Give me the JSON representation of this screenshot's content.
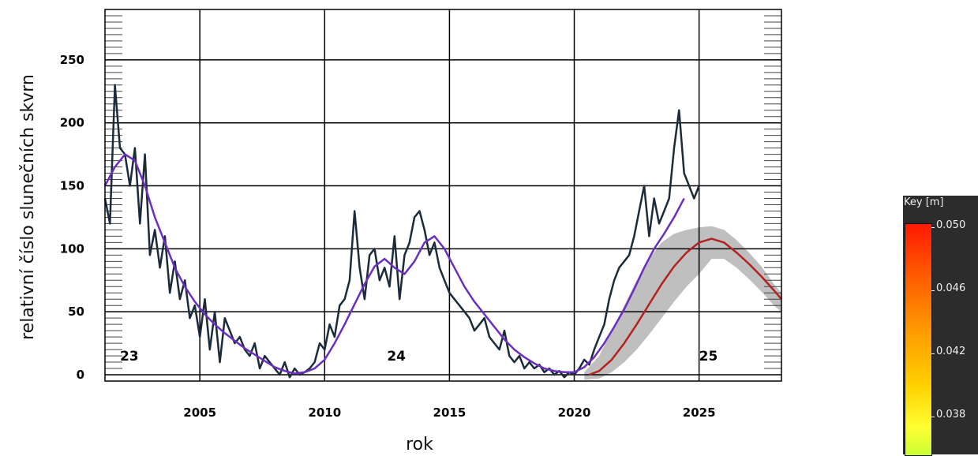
{
  "chart_data": {
    "type": "line",
    "xlabel": "rok",
    "ylabel": "relativní číslo slunečních skvrn",
    "xlim": [
      2001.2,
      2028.3
    ],
    "ylim": [
      -5,
      290
    ],
    "x_ticks": [
      2005,
      2010,
      2015,
      2020,
      2025
    ],
    "y_ticks": [
      0,
      50,
      100,
      150,
      200,
      250
    ],
    "grid": true,
    "cycle_labels": [
      {
        "text": "23",
        "x": 2001.8,
        "y": 15
      },
      {
        "text": "24",
        "x": 2012.5,
        "y": 15
      },
      {
        "text": "25",
        "x": 2025.0,
        "y": 15
      }
    ],
    "series": [
      {
        "color": "#1c2b3a",
        "x": [
          2001.2,
          2001.4,
          2001.6,
          2001.8,
          2002.0,
          2002.2,
          2002.4,
          2002.6,
          2002.8,
          2003.0,
          2003.2,
          2003.4,
          2003.6,
          2003.8,
          2004.0,
          2004.2,
          2004.4,
          2004.6,
          2004.8,
          2005.0,
          2005.2,
          2005.4,
          2005.6,
          2005.8,
          2006.0,
          2006.2,
          2006.4,
          2006.6,
          2006.8,
          2007.0,
          2007.2,
          2007.4,
          2007.6,
          2007.8,
          2008.0,
          2008.2,
          2008.4,
          2008.6,
          2008.8,
          2009.0,
          2009.2,
          2009.4,
          2009.6,
          2009.8,
          2010.0,
          2010.2,
          2010.4,
          2010.6,
          2010.8,
          2011.0,
          2011.2,
          2011.4,
          2011.6,
          2011.8,
          2012.0,
          2012.2,
          2012.4,
          2012.6,
          2012.8,
          2013.0,
          2013.2,
          2013.4,
          2013.6,
          2013.8,
          2014.0,
          2014.2,
          2014.4,
          2014.6,
          2014.8,
          2015.0,
          2015.2,
          2015.4,
          2015.6,
          2015.8,
          2016.0,
          2016.2,
          2016.4,
          2016.6,
          2016.8,
          2017.0,
          2017.2,
          2017.4,
          2017.6,
          2017.8,
          2018.0,
          2018.2,
          2018.4,
          2018.6,
          2018.8,
          2019.0,
          2019.2,
          2019.4,
          2019.6,
          2019.8,
          2020.0,
          2020.2,
          2020.4,
          2020.6,
          2020.8,
          2021.0,
          2021.2,
          2021.4,
          2021.6,
          2021.8,
          2022.0,
          2022.2,
          2022.4,
          2022.6,
          2022.8,
          2023.0,
          2023.2,
          2023.4,
          2023.6,
          2023.8,
          2024.0,
          2024.2,
          2024.4,
          2024.6,
          2024.8,
          2025.0
        ],
        "y": [
          140,
          120,
          230,
          180,
          175,
          150,
          180,
          120,
          175,
          95,
          115,
          85,
          110,
          65,
          90,
          60,
          75,
          45,
          55,
          30,
          60,
          20,
          50,
          10,
          45,
          35,
          25,
          30,
          20,
          15,
          25,
          5,
          15,
          10,
          5,
          0,
          10,
          -2,
          5,
          0,
          2,
          5,
          10,
          25,
          20,
          40,
          30,
          55,
          60,
          75,
          130,
          85,
          60,
          95,
          100,
          75,
          85,
          70,
          110,
          60,
          95,
          105,
          125,
          130,
          115,
          95,
          105,
          85,
          75,
          65,
          60,
          55,
          50,
          45,
          35,
          40,
          45,
          30,
          25,
          20,
          35,
          15,
          10,
          15,
          5,
          10,
          5,
          8,
          2,
          5,
          0,
          3,
          -2,
          2,
          0,
          5,
          12,
          8,
          20,
          30,
          40,
          60,
          75,
          85,
          90,
          95,
          110,
          130,
          150,
          110,
          140,
          120,
          130,
          140,
          180,
          210,
          160,
          150,
          140,
          150
        ],
        "width": 2.5
      },
      {
        "color": "#6a2fc0",
        "x": [
          2001.2,
          2001.6,
          2002.0,
          2002.4,
          2002.8,
          2003.2,
          2003.6,
          2004.0,
          2004.4,
          2004.8,
          2005.2,
          2005.6,
          2006.0,
          2006.4,
          2006.8,
          2007.2,
          2007.6,
          2008.0,
          2008.4,
          2008.8,
          2009.2,
          2009.6,
          2010.0,
          2010.4,
          2010.8,
          2011.2,
          2011.6,
          2012.0,
          2012.4,
          2012.8,
          2013.2,
          2013.6,
          2014.0,
          2014.4,
          2014.8,
          2015.2,
          2015.6,
          2016.0,
          2016.4,
          2016.8,
          2017.2,
          2017.6,
          2018.0,
          2018.4,
          2018.8,
          2019.2,
          2019.6,
          2020.0,
          2020.4,
          2020.8,
          2021.2,
          2021.6,
          2022.0,
          2022.4,
          2022.8,
          2023.2,
          2023.6,
          2024.0,
          2024.4
        ],
        "y": [
          150,
          165,
          175,
          170,
          150,
          125,
          105,
          85,
          70,
          58,
          48,
          40,
          33,
          27,
          21,
          16,
          11,
          6,
          3,
          1,
          2,
          5,
          12,
          25,
          40,
          56,
          72,
          86,
          92,
          85,
          80,
          90,
          105,
          110,
          100,
          85,
          70,
          58,
          48,
          38,
          28,
          20,
          14,
          9,
          5,
          3,
          2,
          2,
          6,
          14,
          25,
          38,
          52,
          68,
          85,
          100,
          112,
          125,
          140
        ],
        "width": 2.5
      },
      {
        "color": "#b22222",
        "x": [
          2020.6,
          2021.0,
          2021.5,
          2022.0,
          2022.5,
          2023.0,
          2023.5,
          2024.0,
          2024.5,
          2025.0,
          2025.5,
          2026.0,
          2026.5,
          2027.0,
          2027.5,
          2028.0,
          2028.3
        ],
        "y": [
          0,
          3,
          12,
          25,
          40,
          56,
          72,
          86,
          97,
          105,
          108,
          105,
          97,
          88,
          78,
          67,
          60
        ],
        "width": 2.5
      },
      {
        "color": "#bfbfbf",
        "type": "band",
        "x": [
          2020.4,
          2021.0,
          2021.5,
          2022.0,
          2022.5,
          2023.0,
          2023.5,
          2024.0,
          2024.5,
          2025.0,
          2025.5,
          2026.0,
          2026.5,
          2027.0,
          2027.5,
          2028.0,
          2028.3
        ],
        "upper": [
          2,
          15,
          35,
          55,
          75,
          92,
          105,
          112,
          115,
          117,
          118,
          115,
          107,
          97,
          86,
          72,
          65
        ],
        "lower": [
          -4,
          -3,
          2,
          10,
          20,
          32,
          45,
          58,
          70,
          80,
          92,
          92,
          85,
          76,
          66,
          55,
          50
        ]
      }
    ]
  },
  "key": {
    "title": "Key [m]",
    "labels": [
      "0.050",
      "0.046",
      "0.042",
      "0.038"
    ]
  }
}
